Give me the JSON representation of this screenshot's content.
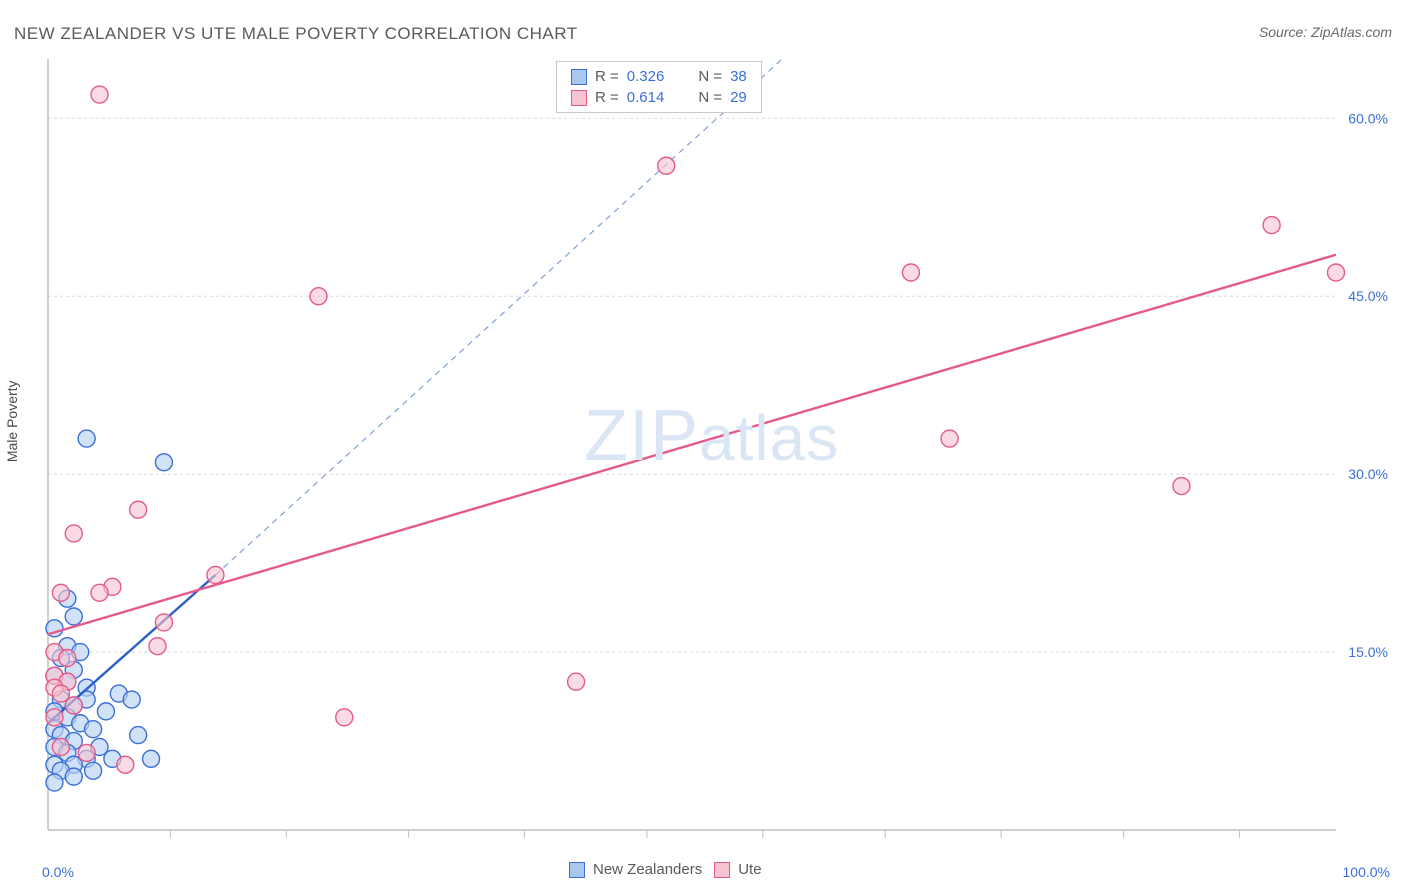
{
  "title": "NEW ZEALANDER VS UTE MALE POVERTY CORRELATION CHART",
  "source": "Source: ZipAtlas.com",
  "y_axis_label": "Male Poverty",
  "watermark": {
    "text1": "ZIP",
    "text2": "atlas"
  },
  "legend_top": {
    "rows": [
      {
        "swatch_fill": "#a9c7ef",
        "swatch_stroke": "#3b6fd8",
        "r_label": "R =",
        "r_value": "0.326",
        "n_label": "N =",
        "n_value": "38"
      },
      {
        "swatch_fill": "#f6c3d1",
        "swatch_stroke": "#e55a8a",
        "r_label": "R =",
        "r_value": "0.614",
        "n_label": "N =",
        "n_value": "29"
      }
    ]
  },
  "legend_bottom": {
    "items": [
      {
        "swatch_fill": "#a9c7ef",
        "swatch_stroke": "#3b6fd8",
        "label": "New Zealanders"
      },
      {
        "swatch_fill": "#f6c3d1",
        "swatch_stroke": "#e55a8a",
        "label": "Ute"
      }
    ]
  },
  "chart": {
    "type": "scatter",
    "background_color": "#ffffff",
    "xlim": [
      0,
      100
    ],
    "ylim": [
      0,
      65
    ],
    "x_ticks": [
      0,
      100
    ],
    "x_tick_labels": [
      "0.0%",
      "100.0%"
    ],
    "x_minor_ticks": [
      9.5,
      18.5,
      28,
      37,
      46.5,
      55.5,
      65,
      74,
      83.5,
      92.5
    ],
    "y_ticks": [
      15,
      30,
      45,
      60
    ],
    "y_tick_labels": [
      "15.0%",
      "30.0%",
      "45.0%",
      "60.0%"
    ],
    "grid_color": "#d8d8d8",
    "grid_dash": "3,3",
    "axis_color": "#bfbfbf",
    "marker_radius": 8.5,
    "marker_stroke_width": 1.4,
    "series": [
      {
        "name": "New Zealanders",
        "fill": "#b9d2f1",
        "stroke": "#3b6fd8",
        "fill_opacity": 0.65,
        "points": [
          [
            1.5,
            19.5
          ],
          [
            2,
            18
          ],
          [
            0.5,
            17
          ],
          [
            1.5,
            15.5
          ],
          [
            2.5,
            15
          ],
          [
            1,
            14.5
          ],
          [
            2,
            13.5
          ],
          [
            0.5,
            13
          ],
          [
            1.5,
            12.5
          ],
          [
            3,
            12
          ],
          [
            5.5,
            11.5
          ],
          [
            1,
            11
          ],
          [
            3,
            11
          ],
          [
            6.5,
            11
          ],
          [
            2,
            10.5
          ],
          [
            0.5,
            10
          ],
          [
            4.5,
            10
          ],
          [
            1.5,
            9.5
          ],
          [
            2.5,
            9
          ],
          [
            0.5,
            8.5
          ],
          [
            3.5,
            8.5
          ],
          [
            7,
            8
          ],
          [
            1,
            8
          ],
          [
            2,
            7.5
          ],
          [
            4,
            7
          ],
          [
            0.5,
            7
          ],
          [
            1.5,
            6.5
          ],
          [
            3,
            6
          ],
          [
            5,
            6
          ],
          [
            0.5,
            5.5
          ],
          [
            2,
            5.5
          ],
          [
            8,
            6
          ],
          [
            1,
            5
          ],
          [
            3.5,
            5
          ],
          [
            2,
            4.5
          ],
          [
            0.5,
            4
          ],
          [
            3,
            33
          ],
          [
            9,
            31
          ]
        ],
        "regression_line": {
          "x1": 0,
          "y1": 9,
          "x2": 13,
          "y2": 21.5,
          "color": "#2a5fc9",
          "width": 2.4
        },
        "dashed_line": {
          "x1": 13,
          "y1": 21.5,
          "x2": 57,
          "y2": 65,
          "color": "#7ea0d8",
          "width": 1.2,
          "dash": "6,5"
        }
      },
      {
        "name": "Ute",
        "fill": "#f6c3d1",
        "stroke": "#e55a8a",
        "fill_opacity": 0.6,
        "points": [
          [
            4,
            62
          ],
          [
            48,
            56
          ],
          [
            95,
            51
          ],
          [
            67,
            47
          ],
          [
            100,
            47
          ],
          [
            21,
            45
          ],
          [
            70,
            33
          ],
          [
            88,
            29
          ],
          [
            7,
            27
          ],
          [
            2,
            25
          ],
          [
            13,
            21.5
          ],
          [
            5,
            20.5
          ],
          [
            4,
            20
          ],
          [
            1,
            20
          ],
          [
            9,
            17.5
          ],
          [
            8.5,
            15.5
          ],
          [
            0.5,
            15
          ],
          [
            1.5,
            14.5
          ],
          [
            0.5,
            13
          ],
          [
            1.5,
            12.5
          ],
          [
            0.5,
            12
          ],
          [
            41,
            12.5
          ],
          [
            1,
            11.5
          ],
          [
            2,
            10.5
          ],
          [
            0.5,
            9.5
          ],
          [
            23,
            9.5
          ],
          [
            6,
            5.5
          ],
          [
            1,
            7
          ],
          [
            3,
            6.5
          ]
        ],
        "regression_line": {
          "x1": 0,
          "y1": 16.5,
          "x2": 100,
          "y2": 48.5,
          "color": "#e55a8a",
          "width": 2.4
        }
      }
    ]
  }
}
